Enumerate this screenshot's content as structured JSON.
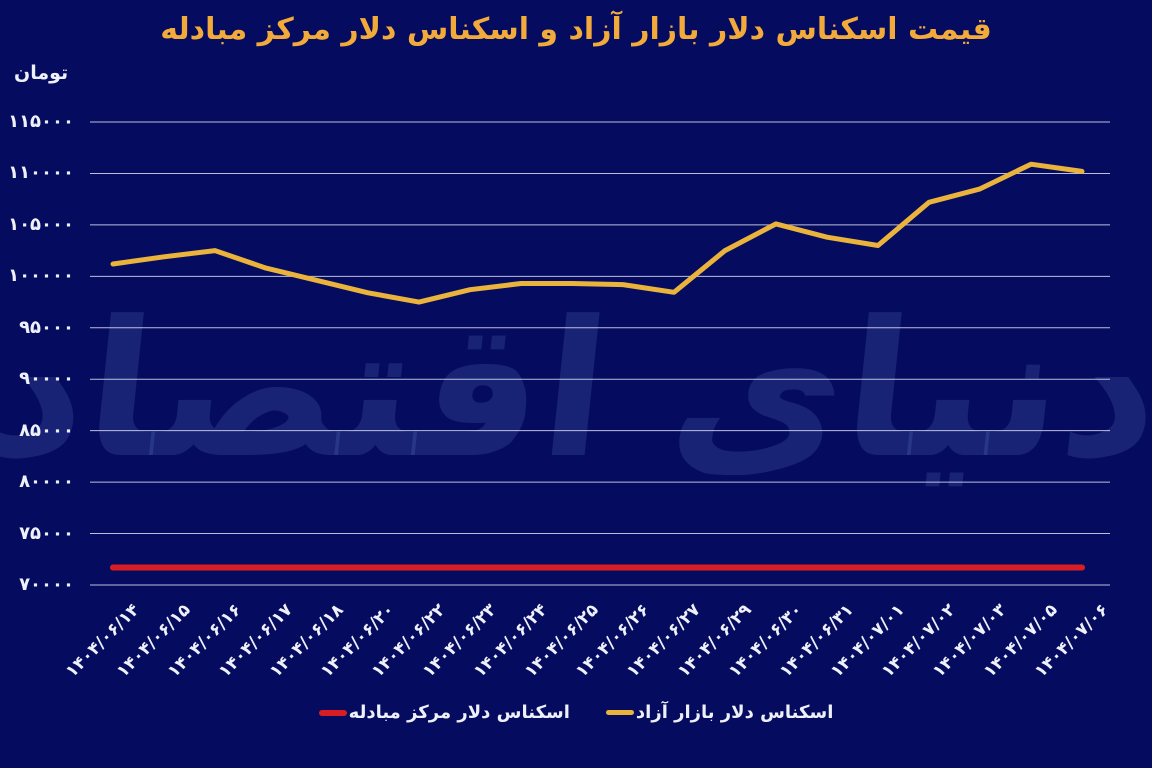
{
  "title": "قیمت اسکناس دلار بازار آزاد و اسکناس دلار مرکز مبادله",
  "unit_label": "تومان",
  "watermark_text": "دنیای اقتصاد",
  "colors": {
    "background": "#050c5f",
    "title_gold": "#f2ab3a",
    "free_market_line": "#e9b33c",
    "exchange_center_line": "#d81e24",
    "gridline": "#dcdff0",
    "tick_text": "#eef0fa",
    "watermark": "rgba(125,158,235,0.16)"
  },
  "legend": [
    {
      "label": "اسکناس دلار بازار آزاد",
      "color": "#e9b33c"
    },
    {
      "label": "اسکناس دلار مرکز مبادله",
      "color": "#d81e24"
    }
  ],
  "chart_data": {
    "type": "line",
    "title": "قیمت اسکناس دلار بازار آزاد و اسکناس دلار مرکز مبادله",
    "ylabel": "تومان",
    "xlabel": "",
    "grid": "horizontal",
    "legend_position": "bottom",
    "ylim": [
      70000,
      115000
    ],
    "x": [
      "۱۴۰۴/۰۶/۱۴",
      "۱۴۰۴/۰۶/۱۵",
      "۱۴۰۴/۰۶/۱۶",
      "۱۴۰۴/۰۶/۱۷",
      "۱۴۰۴/۰۶/۱۸",
      "۱۴۰۴/۰۶/۲۰",
      "۱۴۰۴/۰۶/۲۲",
      "۱۴۰۴/۰۶/۲۳",
      "۱۴۰۴/۰۶/۲۴",
      "۱۴۰۴/۰۶/۲۵",
      "۱۴۰۴/۰۶/۲۶",
      "۱۴۰۴/۰۶/۲۷",
      "۱۴۰۴/۰۶/۲۹",
      "۱۴۰۴/۰۶/۳۰",
      "۱۴۰۴/۰۶/۳۱",
      "۱۴۰۴/۰۷/۰۱",
      "۱۴۰۴/۰۷/۰۲",
      "۱۴۰۴/۰۷/۰۳",
      "۱۴۰۴/۰۷/۰۵",
      "۱۴۰۴/۰۷/۰۶"
    ],
    "yticks": [
      {
        "value": 115000,
        "label": "۱۱۵۰۰۰"
      },
      {
        "value": 110000,
        "label": "۱۱۰۰۰۰"
      },
      {
        "value": 105000,
        "label": "۱۰۵۰۰۰"
      },
      {
        "value": 100000,
        "label": "۱۰۰۰۰۰"
      },
      {
        "value": 95000,
        "label": "۹۵۰۰۰"
      },
      {
        "value": 90000,
        "label": "۹۰۰۰۰"
      },
      {
        "value": 85000,
        "label": "۸۵۰۰۰"
      },
      {
        "value": 80000,
        "label": "۸۰۰۰۰"
      },
      {
        "value": 75000,
        "label": "۷۵۰۰۰"
      },
      {
        "value": 70000,
        "label": "۷۰۰۰۰"
      }
    ],
    "series": [
      {
        "name": "اسکناس دلار بازار آزاد",
        "color": "#e9b33c",
        "values": [
          101200,
          101900,
          102500,
          100800,
          99600,
          98400,
          97500,
          98700,
          99300,
          99300,
          99200,
          98450,
          102500,
          105100,
          103800,
          103000,
          107200,
          108500,
          110900,
          110200
        ]
      },
      {
        "name": "اسکناس دلار مرکز مبادله",
        "color": "#d81e24",
        "values": [
          71700,
          71700,
          71700,
          71700,
          71700,
          71700,
          71700,
          71700,
          71700,
          71700,
          71700,
          71700,
          71700,
          71700,
          71700,
          71700,
          71700,
          71700,
          71700,
          71700
        ]
      }
    ]
  }
}
